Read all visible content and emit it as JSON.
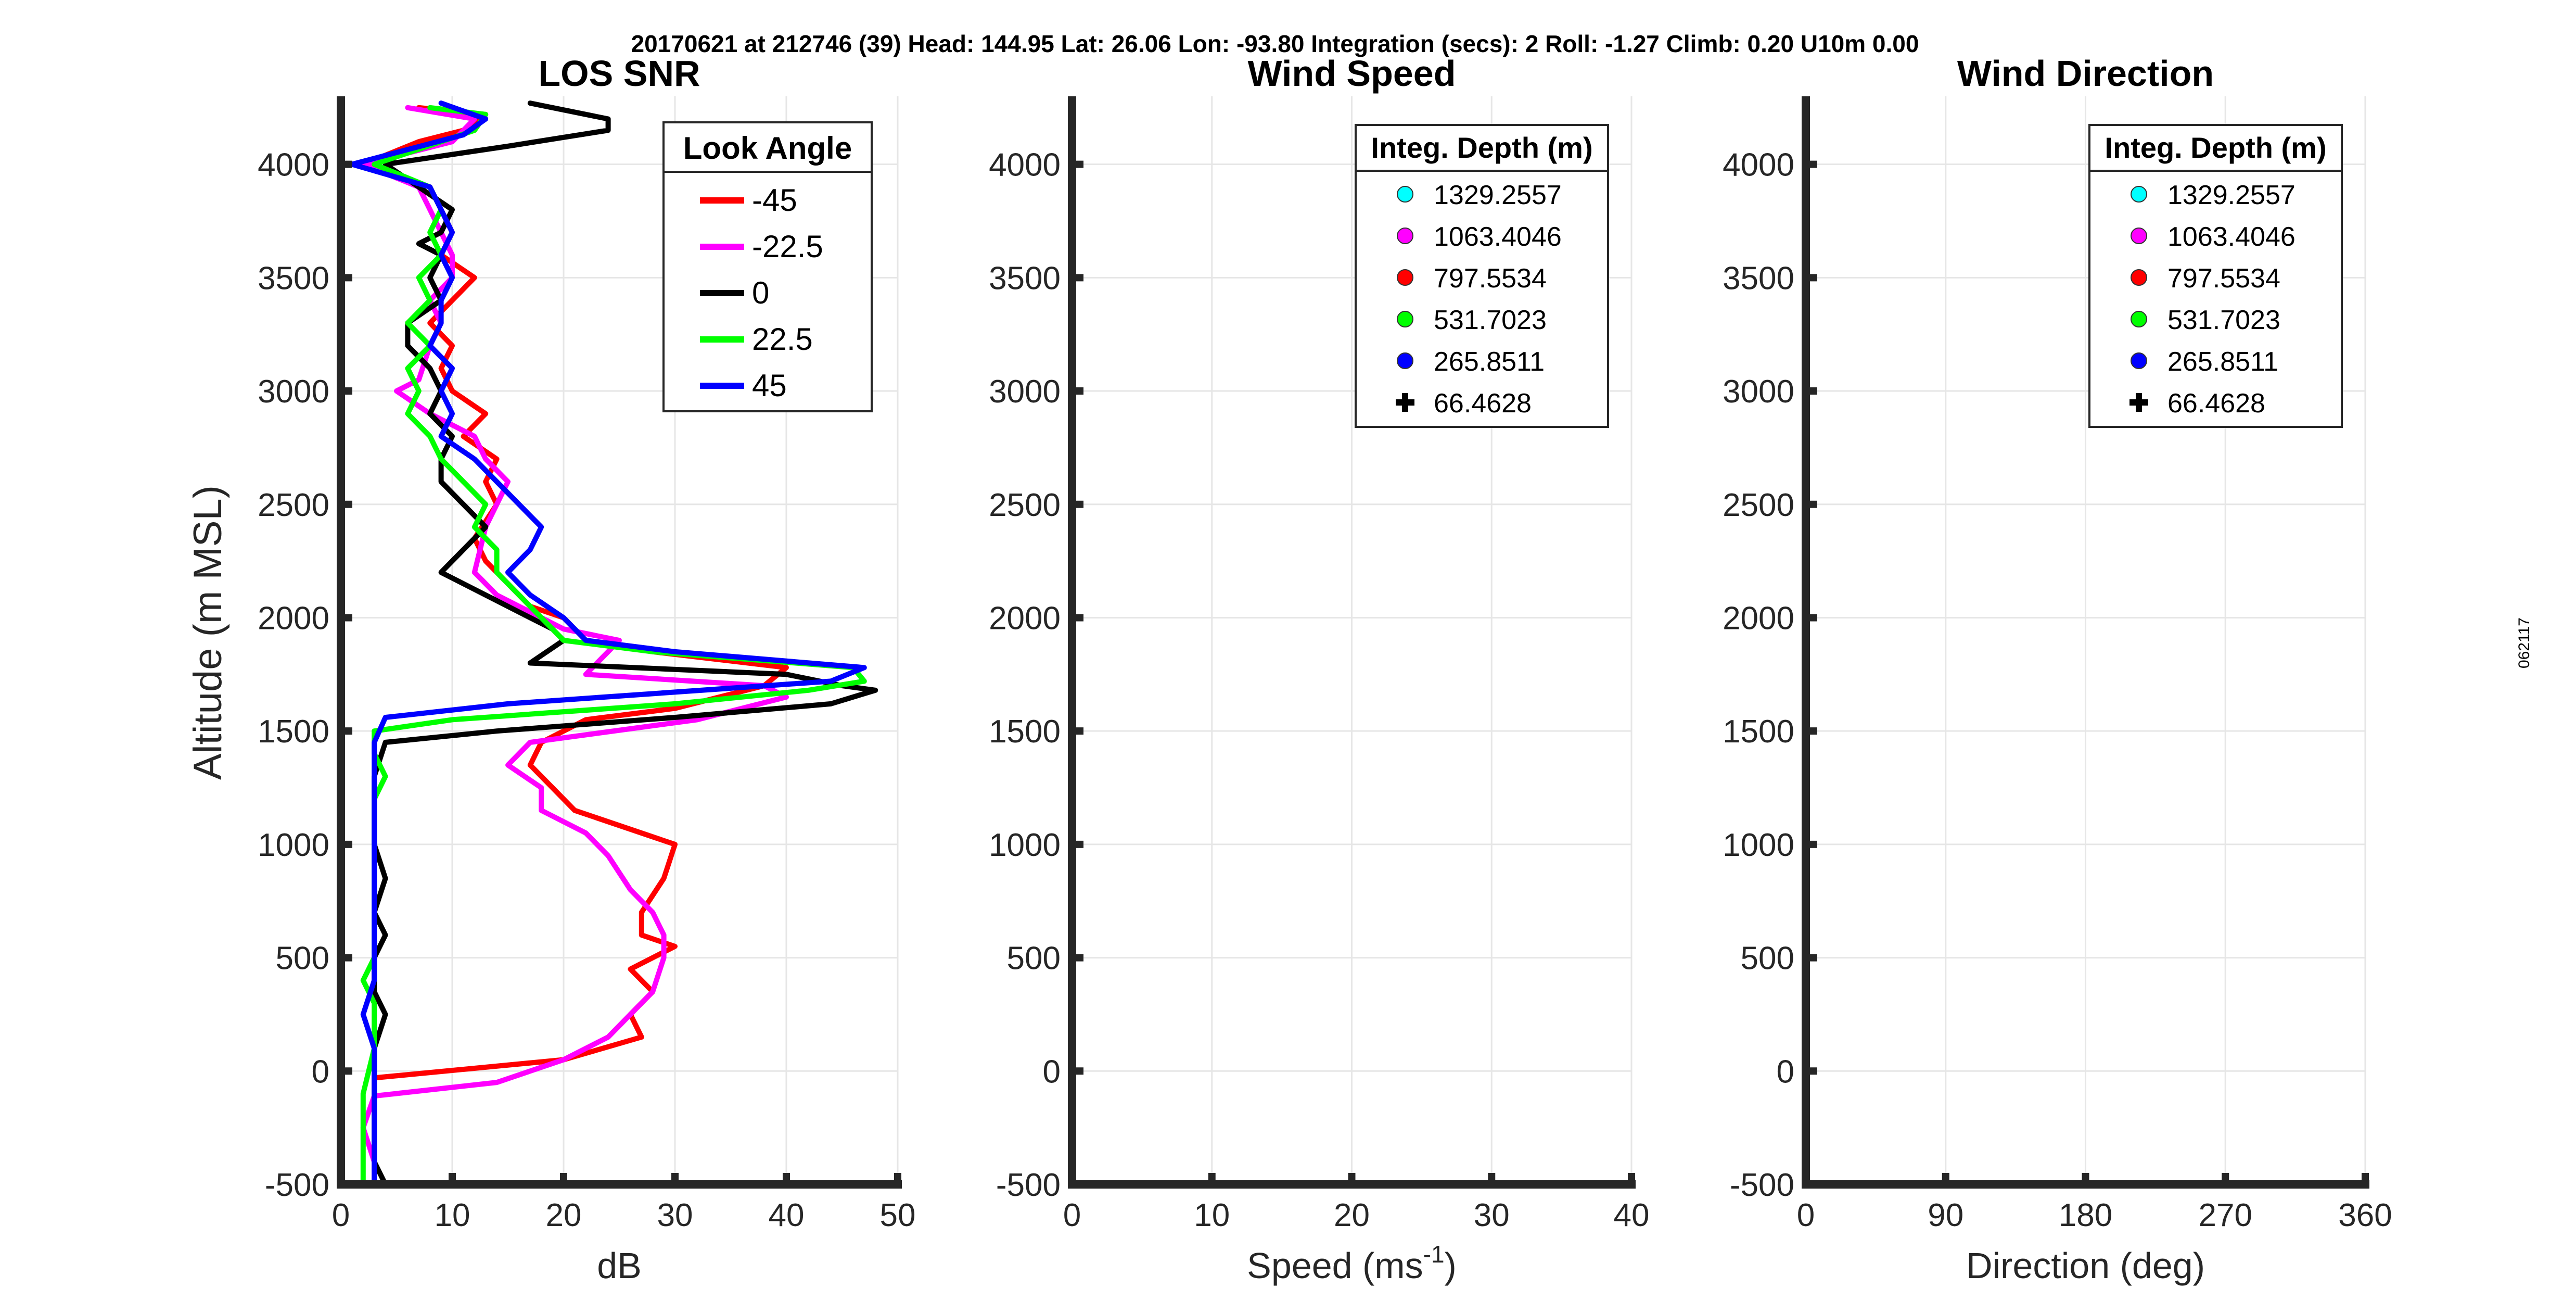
{
  "header": {
    "text": "20170621 at 212746 (39)  Head: 144.95  Lat: 26.06  Lon: -93.80  Integration (secs): 2  Roll: -1.27  Climb: 0.20  U10m 0.00"
  },
  "side_label": "062117",
  "chart_data": [
    {
      "type": "line",
      "title": "LOS SNR",
      "xlabel": "dB",
      "ylabel": "Altitude (m MSL)",
      "xlim": [
        0,
        50
      ],
      "ylim": [
        -500,
        4300
      ],
      "xticks": [
        0,
        10,
        20,
        30,
        40,
        50
      ],
      "yticks": [
        -500,
        0,
        500,
        1000,
        1500,
        2000,
        2500,
        3000,
        3500,
        4000
      ],
      "grid": true,
      "legend": {
        "title": "Look Angle",
        "placement": "top-right"
      },
      "series": [
        {
          "name": "-45",
          "color": "#ff0000",
          "points": [
            [
              7,
              4250
            ],
            [
              13,
              4220
            ],
            [
              11,
              4150
            ],
            [
              7,
              4100
            ],
            [
              2,
              4000
            ],
            [
              8,
              3900
            ],
            [
              9,
              3800
            ],
            [
              10,
              3700
            ],
            [
              9,
              3600
            ],
            [
              12,
              3500
            ],
            [
              10,
              3400
            ],
            [
              8,
              3300
            ],
            [
              10,
              3200
            ],
            [
              9,
              3100
            ],
            [
              10,
              3000
            ],
            [
              13,
              2900
            ],
            [
              11,
              2800
            ],
            [
              14,
              2700
            ],
            [
              13,
              2600
            ],
            [
              14,
              2500
            ],
            [
              12,
              2350
            ],
            [
              13,
              2250
            ],
            [
              15,
              2150
            ],
            [
              17,
              2050
            ],
            [
              20,
              2000
            ],
            [
              22,
              1900
            ],
            [
              28,
              1850
            ],
            [
              40,
              1780
            ],
            [
              38,
              1700
            ],
            [
              30,
              1600
            ],
            [
              22,
              1550
            ],
            [
              18,
              1450
            ],
            [
              17,
              1350
            ],
            [
              19,
              1250
            ],
            [
              21,
              1150
            ],
            [
              30,
              1000
            ],
            [
              29,
              850
            ],
            [
              27,
              700
            ],
            [
              27,
              600
            ],
            [
              30,
              550
            ],
            [
              26,
              450
            ],
            [
              28,
              350
            ],
            [
              26,
              250
            ],
            [
              27,
              150
            ],
            [
              20,
              50
            ],
            [
              3,
              -30
            ]
          ]
        },
        {
          "name": "-22.5",
          "color": "#ff00ff",
          "points": [
            [
              6,
              4250
            ],
            [
              12,
              4200
            ],
            [
              10,
              4100
            ],
            [
              2,
              4000
            ],
            [
              7,
              3900
            ],
            [
              8,
              3800
            ],
            [
              9,
              3700
            ],
            [
              10,
              3600
            ],
            [
              10,
              3500
            ],
            [
              8,
              3400
            ],
            [
              9,
              3300
            ],
            [
              8,
              3200
            ],
            [
              7,
              3050
            ],
            [
              5,
              3000
            ],
            [
              8,
              2900
            ],
            [
              12,
              2800
            ],
            [
              13,
              2700
            ],
            [
              15,
              2600
            ],
            [
              13,
              2400
            ],
            [
              12,
              2200
            ],
            [
              14,
              2100
            ],
            [
              16,
              2050
            ],
            [
              20,
              1950
            ],
            [
              25,
              1900
            ],
            [
              22,
              1750
            ],
            [
              38,
              1700
            ],
            [
              40,
              1650
            ],
            [
              32,
              1550
            ],
            [
              17,
              1450
            ],
            [
              15,
              1350
            ],
            [
              18,
              1250
            ],
            [
              18,
              1150
            ],
            [
              22,
              1050
            ],
            [
              24,
              950
            ],
            [
              26,
              800
            ],
            [
              28,
              700
            ],
            [
              29,
              600
            ],
            [
              29,
              500
            ],
            [
              28,
              350
            ],
            [
              26,
              250
            ],
            [
              24,
              150
            ],
            [
              20,
              50
            ],
            [
              14,
              -50
            ],
            [
              3,
              -110
            ],
            [
              2,
              -250
            ],
            [
              3,
              -400
            ],
            [
              3,
              -500
            ]
          ]
        },
        {
          "name": "0",
          "color": "#000000",
          "points": [
            [
              17,
              4270
            ],
            [
              24,
              4200
            ],
            [
              24,
              4150
            ],
            [
              15,
              4080
            ],
            [
              4,
              4000
            ],
            [
              7,
              3900
            ],
            [
              10,
              3800
            ],
            [
              9,
              3700
            ],
            [
              7,
              3650
            ],
            [
              9,
              3600
            ],
            [
              8,
              3500
            ],
            [
              9,
              3400
            ],
            [
              6,
              3300
            ],
            [
              6,
              3200
            ],
            [
              8,
              3100
            ],
            [
              9,
              3000
            ],
            [
              8,
              2900
            ],
            [
              10,
              2800
            ],
            [
              9,
              2700
            ],
            [
              9,
              2600
            ],
            [
              11,
              2500
            ],
            [
              13,
              2400
            ],
            [
              11,
              2300
            ],
            [
              9,
              2200
            ],
            [
              13,
              2100
            ],
            [
              17,
              2000
            ],
            [
              19,
              1950
            ],
            [
              20,
              1900
            ],
            [
              17,
              1800
            ],
            [
              40,
              1750
            ],
            [
              45,
              1700
            ],
            [
              48,
              1680
            ],
            [
              44,
              1620
            ],
            [
              30,
              1560
            ],
            [
              14,
              1500
            ],
            [
              4,
              1450
            ],
            [
              3,
              1300
            ],
            [
              3,
              1100
            ],
            [
              3,
              1000
            ],
            [
              4,
              850
            ],
            [
              3,
              700
            ],
            [
              4,
              600
            ],
            [
              3,
              500
            ],
            [
              3,
              350
            ],
            [
              4,
              250
            ],
            [
              3,
              100
            ],
            [
              3,
              -100
            ],
            [
              3,
              -300
            ],
            [
              3,
              -400
            ],
            [
              4,
              -500
            ]
          ]
        },
        {
          "name": "22.5",
          "color": "#00ff00",
          "points": [
            [
              8,
              4250
            ],
            [
              13,
              4220
            ],
            [
              12,
              4150
            ],
            [
              6,
              4050
            ],
            [
              3,
              4000
            ],
            [
              8,
              3900
            ],
            [
              9,
              3800
            ],
            [
              8,
              3700
            ],
            [
              9,
              3600
            ],
            [
              7,
              3500
            ],
            [
              8,
              3400
            ],
            [
              6,
              3300
            ],
            [
              8,
              3200
            ],
            [
              6,
              3100
            ],
            [
              7,
              3000
            ],
            [
              6,
              2900
            ],
            [
              8,
              2800
            ],
            [
              9,
              2700
            ],
            [
              11,
              2600
            ],
            [
              13,
              2500
            ],
            [
              12,
              2400
            ],
            [
              14,
              2300
            ],
            [
              14,
              2200
            ],
            [
              16,
              2100
            ],
            [
              18,
              2000
            ],
            [
              20,
              1900
            ],
            [
              28,
              1850
            ],
            [
              46,
              1780
            ],
            [
              47,
              1720
            ],
            [
              42,
              1680
            ],
            [
              30,
              1620
            ],
            [
              10,
              1550
            ],
            [
              3,
              1500
            ],
            [
              3,
              1400
            ],
            [
              4,
              1300
            ],
            [
              3,
              1200
            ],
            [
              3,
              1100
            ],
            [
              3,
              1000
            ],
            [
              3,
              900
            ],
            [
              3,
              700
            ],
            [
              3,
              600
            ],
            [
              3,
              500
            ],
            [
              2,
              400
            ],
            [
              3,
              300
            ],
            [
              3,
              100
            ],
            [
              2,
              -100
            ],
            [
              2,
              -300
            ],
            [
              2,
              -500
            ]
          ]
        },
        {
          "name": "45",
          "color": "#0000ff",
          "points": [
            [
              9,
              4270
            ],
            [
              13,
              4200
            ],
            [
              11,
              4130
            ],
            [
              1,
              4000
            ],
            [
              8,
              3900
            ],
            [
              9,
              3800
            ],
            [
              10,
              3700
            ],
            [
              9,
              3600
            ],
            [
              10,
              3500
            ],
            [
              9,
              3400
            ],
            [
              9,
              3300
            ],
            [
              8,
              3200
            ],
            [
              10,
              3100
            ],
            [
              9,
              3000
            ],
            [
              10,
              2900
            ],
            [
              9,
              2800
            ],
            [
              12,
              2700
            ],
            [
              14,
              2600
            ],
            [
              16,
              2500
            ],
            [
              18,
              2400
            ],
            [
              17,
              2300
            ],
            [
              15,
              2200
            ],
            [
              17,
              2100
            ],
            [
              20,
              2000
            ],
            [
              22,
              1900
            ],
            [
              30,
              1850
            ],
            [
              47,
              1780
            ],
            [
              44,
              1720
            ],
            [
              15,
              1620
            ],
            [
              4,
              1560
            ],
            [
              3,
              1450
            ],
            [
              3,
              1300
            ],
            [
              3,
              1200
            ],
            [
              3,
              1100
            ],
            [
              3,
              1000
            ],
            [
              3,
              900
            ],
            [
              3,
              750
            ],
            [
              3,
              600
            ],
            [
              3,
              500
            ],
            [
              3,
              400
            ],
            [
              2,
              250
            ],
            [
              3,
              100
            ],
            [
              3,
              -100
            ],
            [
              3,
              -300
            ],
            [
              3,
              -500
            ]
          ]
        }
      ]
    },
    {
      "type": "scatter",
      "title": "Wind Speed",
      "xlabel": "Speed (ms",
      "xlabel_sup": "-1",
      "xlabel_end": ")",
      "xlim": [
        0,
        40
      ],
      "ylim": [
        -500,
        4300
      ],
      "xticks": [
        0,
        10,
        20,
        30,
        40
      ],
      "yticks": [
        -500,
        0,
        500,
        1000,
        1500,
        2000,
        2500,
        3000,
        3500,
        4000
      ],
      "grid": true,
      "legend": {
        "title": "Integ. Depth (m)",
        "placement": "top-right",
        "entries": [
          {
            "label": "1329.2557",
            "color": "#00ffff",
            "marker": "circle"
          },
          {
            "label": "1063.4046",
            "color": "#ff00ff",
            "marker": "circle"
          },
          {
            "label": "797.5534",
            "color": "#ff0000",
            "marker": "circle"
          },
          {
            "label": "531.7023",
            "color": "#00ff00",
            "marker": "circle"
          },
          {
            "label": "265.8511",
            "color": "#0000ff",
            "marker": "circle"
          },
          {
            "label": "66.4628",
            "color": "#000000",
            "marker": "plus"
          }
        ]
      },
      "series": []
    },
    {
      "type": "scatter",
      "title": "Wind Direction",
      "xlabel": "Direction (deg)",
      "xlim": [
        0,
        360
      ],
      "ylim": [
        -500,
        4300
      ],
      "xticks": [
        0,
        90,
        180,
        270,
        360
      ],
      "yticks": [
        -500,
        0,
        500,
        1000,
        1500,
        2000,
        2500,
        3000,
        3500,
        4000
      ],
      "grid": true,
      "legend": {
        "title": "Integ. Depth (m)",
        "placement": "top-right",
        "entries": [
          {
            "label": "1329.2557",
            "color": "#00ffff",
            "marker": "circle"
          },
          {
            "label": "1063.4046",
            "color": "#ff00ff",
            "marker": "circle"
          },
          {
            "label": "797.5534",
            "color": "#ff0000",
            "marker": "circle"
          },
          {
            "label": "531.7023",
            "color": "#00ff00",
            "marker": "circle"
          },
          {
            "label": "265.8511",
            "color": "#0000ff",
            "marker": "circle"
          },
          {
            "label": "66.4628",
            "color": "#000000",
            "marker": "plus"
          }
        ]
      },
      "series": []
    }
  ]
}
